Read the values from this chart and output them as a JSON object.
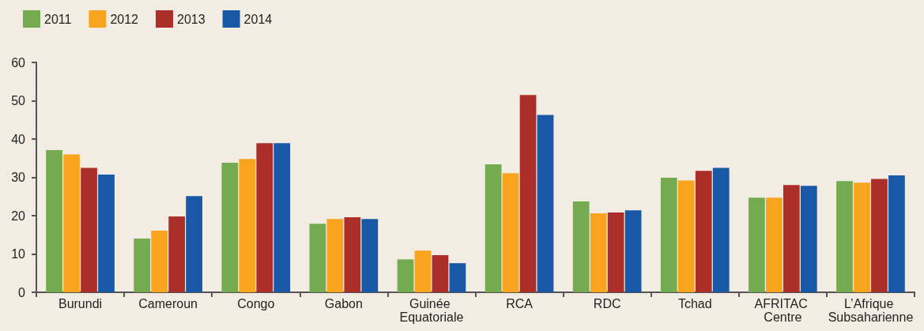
{
  "chart_data": {
    "type": "bar",
    "categories": [
      "Burundi",
      "Cameroun",
      "Congo",
      "Gabon",
      "Guinée Equatoriale",
      "RCA",
      "RDC",
      "Tchad",
      "AFRITAC Centre",
      "L’Afrique Subsaharienne"
    ],
    "series": [
      {
        "name": "2011",
        "color": "#74aa50",
        "values": [
          37.1,
          14.0,
          33.8,
          17.9,
          8.6,
          33.4,
          23.7,
          29.9,
          24.7,
          29.0
        ]
      },
      {
        "name": "2012",
        "color": "#f8a51d",
        "values": [
          36.0,
          16.1,
          34.8,
          19.1,
          10.9,
          31.1,
          20.6,
          29.2,
          24.7,
          28.6
        ]
      },
      {
        "name": "2013",
        "color": "#ab2e28",
        "values": [
          32.5,
          19.8,
          38.9,
          19.6,
          9.7,
          51.5,
          20.8,
          31.7,
          28.0,
          29.6
        ]
      },
      {
        "name": "2014",
        "color": "#1958a7",
        "values": [
          30.7,
          25.1,
          38.9,
          19.1,
          7.6,
          46.3,
          21.4,
          32.5,
          27.8,
          30.5
        ]
      }
    ],
    "ylim": [
      0,
      60
    ],
    "yticks": [
      0,
      10,
      20,
      30,
      40,
      50,
      60
    ],
    "grid": false,
    "legend": "top left"
  }
}
